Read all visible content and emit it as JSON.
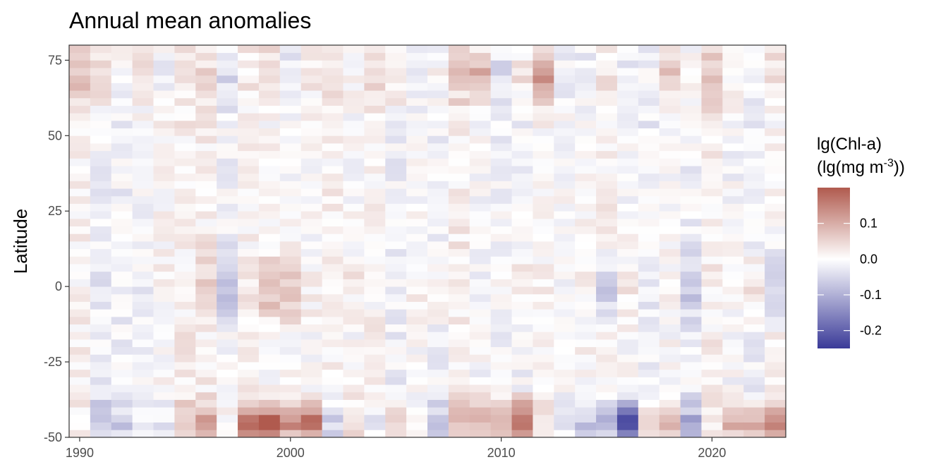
{
  "chart_data": {
    "type": "heatmap",
    "title": "Annual mean anomalies",
    "xlabel": "",
    "ylabel": "Latitude",
    "x_range": [
      1989.5,
      2023.5
    ],
    "y_range": [
      -50,
      80
    ],
    "x_ticks": [
      1990,
      2000,
      2010,
      2020
    ],
    "x_tick_labels": [
      "1990",
      "2000",
      "2010",
      "2020"
    ],
    "y_ticks": [
      75,
      50,
      25,
      0,
      -25,
      -50
    ],
    "y_tick_labels": [
      "75",
      "50",
      "25",
      "0",
      "-25",
      "-50"
    ],
    "years": [
      1990,
      1991,
      1992,
      1993,
      1994,
      1995,
      1996,
      1997,
      1998,
      1999,
      2000,
      2001,
      2002,
      2003,
      2004,
      2005,
      2006,
      2007,
      2008,
      2009,
      2010,
      2011,
      2012,
      2013,
      2014,
      2015,
      2016,
      2017,
      2018,
      2019,
      2020,
      2021,
      2022,
      2023
    ],
    "lat_bin_height": 2.5,
    "approx_anomaly_ranges": [
      {
        "lat_range": [
          -50,
          -40
        ],
        "year_values": [
          0.0,
          -0.08,
          -0.06,
          0.0,
          -0.04,
          0.06,
          0.1,
          0.02,
          0.16,
          0.2,
          0.14,
          0.18,
          -0.08,
          0.06,
          -0.04,
          0.08,
          0.02,
          -0.06,
          0.08,
          0.1,
          0.12,
          0.22,
          0.04,
          -0.04,
          -0.08,
          -0.1,
          -0.24,
          0.06,
          0.1,
          -0.1,
          0.02,
          0.1,
          0.12,
          0.14
        ]
      },
      {
        "lat_range": [
          -10,
          10
        ],
        "year_values": [
          0.0,
          -0.03,
          0.0,
          -0.02,
          0.0,
          0.0,
          0.06,
          -0.07,
          0.02,
          0.1,
          0.08,
          0.02,
          0.0,
          0.02,
          -0.02,
          0.0,
          0.02,
          0.04,
          0.0,
          -0.02,
          0.02,
          0.04,
          0.0,
          0.0,
          0.0,
          -0.08,
          0.02,
          0.0,
          0.0,
          -0.06,
          0.0,
          0.02,
          0.06,
          -0.08
        ]
      },
      {
        "lat_range": [
          60,
          80
        ],
        "year_values": [
          0.06,
          0.08,
          0.02,
          0.04,
          -0.02,
          0.02,
          0.04,
          -0.04,
          0.02,
          0.06,
          -0.04,
          0.02,
          0.02,
          0.0,
          0.04,
          0.06,
          -0.02,
          0.02,
          0.04,
          0.1,
          -0.04,
          0.04,
          0.12,
          -0.02,
          -0.04,
          0.02,
          -0.02,
          0.0,
          0.06,
          0.02,
          0.06,
          0.02,
          0.0,
          0.04
        ]
      }
    ],
    "legend": {
      "title_line1": "lg(Chl-a)",
      "title_line2_prefix": "(lg(mg m",
      "title_line2_sup": "-3",
      "title_line2_suffix": "))",
      "min": -0.25,
      "max": 0.2,
      "ticks": [
        0.1,
        0.0,
        -0.1,
        -0.2
      ],
      "tick_labels": [
        "0.1",
        "0.0",
        "-0.1",
        "-0.2"
      ],
      "colors": {
        "low": "#3a3a98",
        "mid": "#ffffff",
        "high": "#b05a4e"
      },
      "placement": "right"
    },
    "grid": false
  }
}
